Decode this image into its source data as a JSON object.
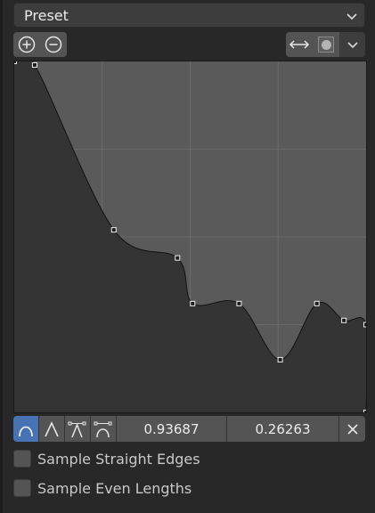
{
  "preset": {
    "label": "Preset",
    "dropdown_icon": "chevron-down-icon"
  },
  "toolbar": {
    "zoom_in_icon": "zoom-in-icon",
    "zoom_out_icon": "zoom-out-icon",
    "clipping_icon": "horizontal-arrows-icon",
    "dot_icon": "circle-dot-icon",
    "menu_icon": "chevron-down-icon"
  },
  "curve": {
    "points": [
      [
        0.0,
        1.0
      ],
      [
        0.058,
        0.99
      ],
      [
        0.283,
        0.52
      ],
      [
        0.464,
        0.44
      ],
      [
        0.507,
        0.31
      ],
      [
        0.639,
        0.31
      ],
      [
        0.756,
        0.15
      ],
      [
        0.86,
        0.31
      ],
      [
        0.937,
        0.262
      ],
      [
        1.0,
        0.25
      ],
      [
        1.0,
        0.0
      ]
    ],
    "active_point": {
      "x": 0.93687,
      "y": 0.26263
    }
  },
  "handles": {
    "auto_icon": "handle-auto-icon",
    "vector_icon": "handle-vector-icon",
    "auto_clamped_icon": "handle-auto-clamped-icon",
    "aligned_icon": "handle-aligned-icon"
  },
  "values": {
    "x": "0.93687",
    "y": "0.26263"
  },
  "delete_icon": "x-icon",
  "options": {
    "sample_straight_edges": {
      "label": "Sample Straight Edges",
      "checked": false
    },
    "sample_even_lengths": {
      "label": "Sample Even Lengths",
      "checked": false
    }
  }
}
